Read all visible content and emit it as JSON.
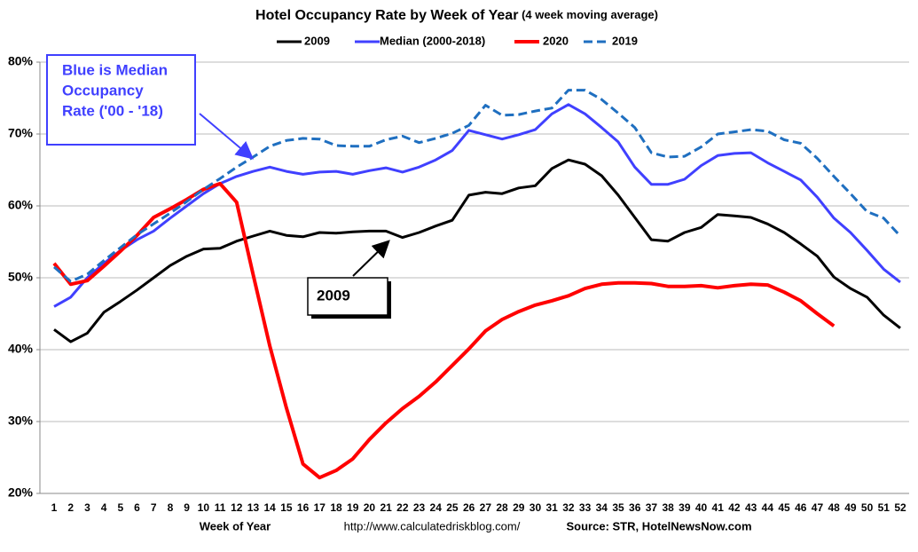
{
  "chart_data": {
    "type": "line",
    "title": "Hotel Occupancy Rate by  Week of Year",
    "subtitle": "(4 week moving average)",
    "x_label": "Week of Year",
    "source_url": "http://www.calculatedriskblog.com/",
    "source": "Source: STR, HotelNewsNow.com",
    "annotations": [
      {
        "lines": [
          "Blue is Median",
          "Occupancy",
          "Rate ('00 - '18)"
        ]
      },
      {
        "lines": [
          "2009"
        ]
      }
    ],
    "categories": [
      "1",
      "2",
      "3",
      "4",
      "5",
      "6",
      "7",
      "8",
      "9",
      "10",
      "11",
      "12",
      "13",
      "14",
      "15",
      "16",
      "17",
      "18",
      "19",
      "20",
      "21",
      "22",
      "23",
      "24",
      "25",
      "26",
      "27",
      "28",
      "29",
      "30",
      "31",
      "32",
      "33",
      "34",
      "35",
      "36",
      "37",
      "38",
      "39",
      "40",
      "41",
      "42",
      "43",
      "44",
      "45",
      "46",
      "47",
      "48",
      "49",
      "50",
      "51",
      "52"
    ],
    "ylim": [
      20,
      80
    ],
    "yticks": [
      {
        "value": 20,
        "label": "20%"
      },
      {
        "value": 30,
        "label": "30%"
      },
      {
        "value": 40,
        "label": "40%"
      },
      {
        "value": 50,
        "label": "50%"
      },
      {
        "value": 60,
        "label": "60%"
      },
      {
        "value": 70,
        "label": "70%"
      },
      {
        "value": 80,
        "label": "80%"
      }
    ],
    "grid": true,
    "legend": "top",
    "series": [
      {
        "name": "2009",
        "color": "#000000",
        "dashed": false,
        "values": [
          42.8,
          41.1,
          42.3,
          45.2,
          46.7,
          48.3,
          50,
          51.7,
          53,
          54,
          54.1,
          55.1,
          55.8,
          56.5,
          55.9,
          55.7,
          56.3,
          56.2,
          56.4,
          56.5,
          56.5,
          55.6,
          56.3,
          57.2,
          58,
          61.5,
          61.9,
          61.7,
          62.5,
          62.8,
          65.2,
          66.4,
          65.8,
          64.2,
          61.5,
          58.4,
          55.3,
          55.1,
          56.3,
          57,
          58.8,
          58.6,
          58.4,
          57.5,
          56.3,
          54.7,
          53,
          50.1,
          48.5,
          47.3,
          44.8,
          43
        ]
      },
      {
        "name": "Median (2000-2018)",
        "color": "#4040ff",
        "dashed": false,
        "values": [
          46,
          47.3,
          50,
          52,
          53.8,
          55.3,
          56.5,
          58.3,
          60,
          61.7,
          63.1,
          64.1,
          64.8,
          65.4,
          64.8,
          64.4,
          64.7,
          64.8,
          64.4,
          64.9,
          65.3,
          64.7,
          65.4,
          66.4,
          67.7,
          70.5,
          69.9,
          69.3,
          69.9,
          70.6,
          72.8,
          74.1,
          72.8,
          70.9,
          68.9,
          65.4,
          63,
          63,
          63.7,
          65.6,
          67,
          67.3,
          67.4,
          66,
          64.8,
          63.6,
          61.2,
          58.3,
          56.3,
          53.8,
          51.2,
          49.4
        ]
      },
      {
        "name": "2020",
        "color": "#ff0000",
        "dashed": false,
        "values": [
          52,
          49.1,
          49.6,
          51.6,
          53.7,
          55.9,
          58.4,
          59.6,
          60.9,
          62.3,
          63.1,
          60.5,
          50.4,
          40.5,
          31.9,
          24.1,
          22.2,
          23.2,
          24.8,
          27.5,
          29.8,
          31.8,
          33.5,
          35.5,
          37.8,
          40.1,
          42.6,
          44.2,
          45.3,
          46.2,
          46.8,
          47.5,
          48.5,
          49.1,
          49.3,
          49.3,
          49.2,
          48.8,
          48.8,
          48.9,
          48.6,
          48.9,
          49.1,
          49,
          48,
          46.8,
          45,
          43.3,
          null,
          null,
          null,
          null
        ]
      },
      {
        "name": "2019",
        "color": "#1f6fc0",
        "dashed": true,
        "values": [
          51.5,
          49.5,
          50.5,
          52.4,
          54.2,
          56,
          57.5,
          59,
          60.6,
          62.3,
          63.8,
          65.4,
          66.8,
          68.3,
          69.1,
          69.4,
          69.3,
          68.4,
          68.3,
          68.3,
          69.2,
          69.7,
          68.8,
          69.4,
          70.1,
          71.2,
          74,
          72.6,
          72.7,
          73.2,
          73.6,
          76.1,
          76.1,
          74.8,
          72.9,
          70.9,
          67.4,
          66.8,
          66.9,
          68.2,
          70,
          70.3,
          70.6,
          70.4,
          69.2,
          68.7,
          66.6,
          64.1,
          61.7,
          59.2,
          58.3,
          55.8
        ]
      }
    ]
  }
}
